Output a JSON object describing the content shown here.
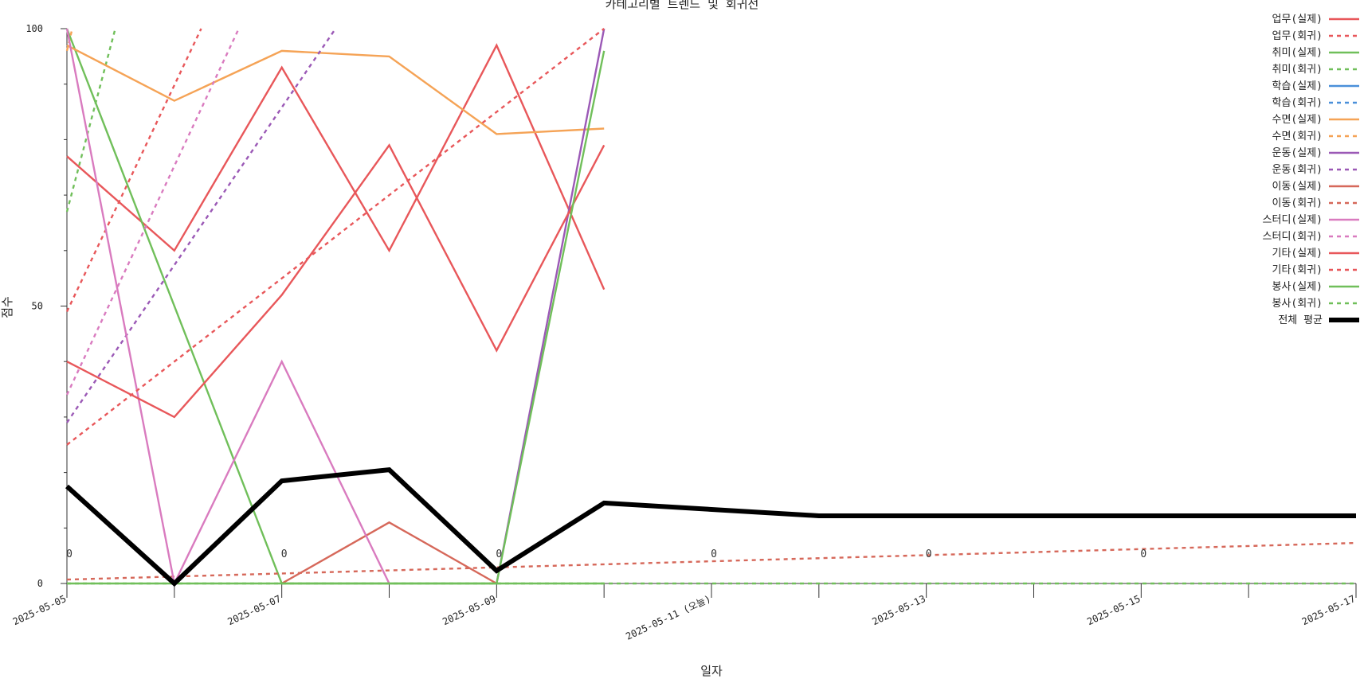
{
  "chart_data": {
    "type": "line",
    "title": "카테고리별 트렌드 및 회귀선",
    "xlabel": "일자",
    "ylabel": "점수",
    "ylim": [
      0,
      100
    ],
    "y_ticks": [
      "0",
      "50",
      "100"
    ],
    "x_dates": [
      "2025-05-05",
      "2025-05-06",
      "2025-05-07",
      "2025-05-08",
      "2025-05-09",
      "2025-05-10",
      "2025-05-11",
      "2025-05-12",
      "2025-05-13",
      "2025-05-14",
      "2025-05-15",
      "2025-05-16",
      "2025-05-17"
    ],
    "x_tick_labels": [
      {
        "date": "2025-05-05",
        "label": "2025-05-05"
      },
      {
        "date": "2025-05-07",
        "label": "2025-05-07"
      },
      {
        "date": "2025-05-09",
        "label": "2025-05-09"
      },
      {
        "date": "2025-05-11",
        "label": "2025-05-11 (오늘)"
      },
      {
        "date": "2025-05-13",
        "label": "2025-05-13"
      },
      {
        "date": "2025-05-15",
        "label": "2025-05-15"
      },
      {
        "date": "2025-05-17",
        "label": "2025-05-17"
      }
    ],
    "grid": false,
    "legend_position": "top-right",
    "zero_annotations": [
      {
        "date": "2025-05-05",
        "text": "0"
      },
      {
        "date": "2025-05-07",
        "text": "0"
      },
      {
        "date": "2025-05-09",
        "text": "0"
      },
      {
        "date": "2025-05-11",
        "text": "0"
      },
      {
        "date": "2025-05-13",
        "text": "0"
      },
      {
        "date": "2025-05-15",
        "text": "0"
      }
    ],
    "series": [
      {
        "name": "업무(실제)",
        "color": "#e8575a",
        "style": "solid",
        "points": [
          [
            "2025-05-05",
            77
          ],
          [
            "2025-05-06",
            60
          ],
          [
            "2025-05-07",
            93
          ],
          [
            "2025-05-08",
            60
          ],
          [
            "2025-05-09",
            97
          ],
          [
            "2025-05-10",
            53
          ]
        ]
      },
      {
        "name": "업무(회귀)",
        "color": "#e8575a",
        "style": "dashed",
        "points": [
          [
            "2025-05-05",
            49
          ],
          [
            "2025-05-06.25",
            100
          ]
        ]
      },
      {
        "name": "취미(실제)",
        "color": "#70bf5a",
        "style": "solid",
        "points": [
          [
            "2025-05-05",
            100
          ],
          [
            "2025-05-07",
            0
          ],
          [
            "2025-05-10",
            0
          ]
        ]
      },
      {
        "name": "취미(회귀)",
        "color": "#70bf5a",
        "style": "dashed",
        "points": [
          [
            "2025-05-05",
            67
          ],
          [
            "2025-05-05.45",
            100
          ]
        ]
      },
      {
        "name": "학습(실제)",
        "color": "#4a90d9",
        "style": "solid",
        "points": []
      },
      {
        "name": "학습(회귀)",
        "color": "#4a90d9",
        "style": "dashed",
        "points": []
      },
      {
        "name": "수면(실제)",
        "color": "#f5a356",
        "style": "solid",
        "points": [
          [
            "2025-05-05",
            97
          ],
          [
            "2025-05-06",
            87
          ],
          [
            "2025-05-07",
            96
          ],
          [
            "2025-05-08",
            95
          ],
          [
            "2025-05-09",
            81
          ],
          [
            "2025-05-10",
            82
          ]
        ]
      },
      {
        "name": "수면(회귀)",
        "color": "#f5a356",
        "style": "dashed",
        "points": [
          [
            "2025-05-05",
            96
          ],
          [
            "2025-05-05.05",
            100
          ]
        ]
      },
      {
        "name": "운동(실제)",
        "color": "#9b59b6",
        "style": "solid",
        "points": [
          [
            "2025-05-09",
            0
          ],
          [
            "2025-05-10",
            100
          ]
        ]
      },
      {
        "name": "운동(회귀)",
        "color": "#9b59b6",
        "style": "dashed",
        "points": [
          [
            "2025-05-05",
            29
          ],
          [
            "2025-05-07.5",
            100
          ]
        ]
      },
      {
        "name": "이동(실제)",
        "color": "#d6685a",
        "style": "solid",
        "points": [
          [
            "2025-05-07",
            0
          ],
          [
            "2025-05-08",
            11
          ],
          [
            "2025-05-09",
            0
          ]
        ]
      },
      {
        "name": "이동(회귀)",
        "color": "#d6685a",
        "style": "dashed",
        "points": [
          [
            "2025-05-05",
            0.7
          ],
          [
            "2025-05-17",
            7.3
          ]
        ]
      },
      {
        "name": "스터디(실제)",
        "color": "#d97bbf",
        "style": "solid",
        "points": [
          [
            "2025-05-05",
            100
          ],
          [
            "2025-05-06",
            0
          ],
          [
            "2025-05-07",
            40
          ],
          [
            "2025-05-08",
            0
          ]
        ]
      },
      {
        "name": "스터디(회귀)",
        "color": "#d97bbf",
        "style": "dashed",
        "points": [
          [
            "2025-05-05",
            34
          ],
          [
            "2025-05-06.6",
            100
          ]
        ]
      },
      {
        "name": "기타(실제)",
        "color": "#e8575a",
        "style": "solid",
        "points": [
          [
            "2025-05-05",
            40
          ],
          [
            "2025-05-06",
            30
          ],
          [
            "2025-05-07",
            52
          ],
          [
            "2025-05-08",
            79
          ],
          [
            "2025-05-09",
            42
          ],
          [
            "2025-05-10",
            79
          ]
        ]
      },
      {
        "name": "기타(회귀)",
        "color": "#e8575a",
        "style": "dashed",
        "points": [
          [
            "2025-05-05",
            25
          ],
          [
            "2025-05-10",
            100
          ]
        ]
      },
      {
        "name": "봉사(실제)",
        "color": "#70bf5a",
        "style": "solid",
        "points": [
          [
            "2025-05-05",
            0
          ],
          [
            "2025-05-09",
            0
          ],
          [
            "2025-05-10",
            96
          ]
        ]
      },
      {
        "name": "봉사(회귀)",
        "color": "#70bf5a",
        "style": "dashed",
        "points": [
          [
            "2025-05-05",
            0
          ],
          [
            "2025-05-17",
            0
          ]
        ]
      },
      {
        "name": "전체 평균",
        "color": "#000000",
        "style": "bold",
        "points": [
          [
            "2025-05-05",
            17.5
          ],
          [
            "2025-05-06",
            0
          ],
          [
            "2025-05-07",
            18.5
          ],
          [
            "2025-05-08",
            20.5
          ],
          [
            "2025-05-09",
            2.3
          ],
          [
            "2025-05-10",
            14.5
          ],
          [
            "2025-05-12",
            12.2
          ],
          [
            "2025-05-17",
            12.2
          ]
        ]
      }
    ]
  }
}
